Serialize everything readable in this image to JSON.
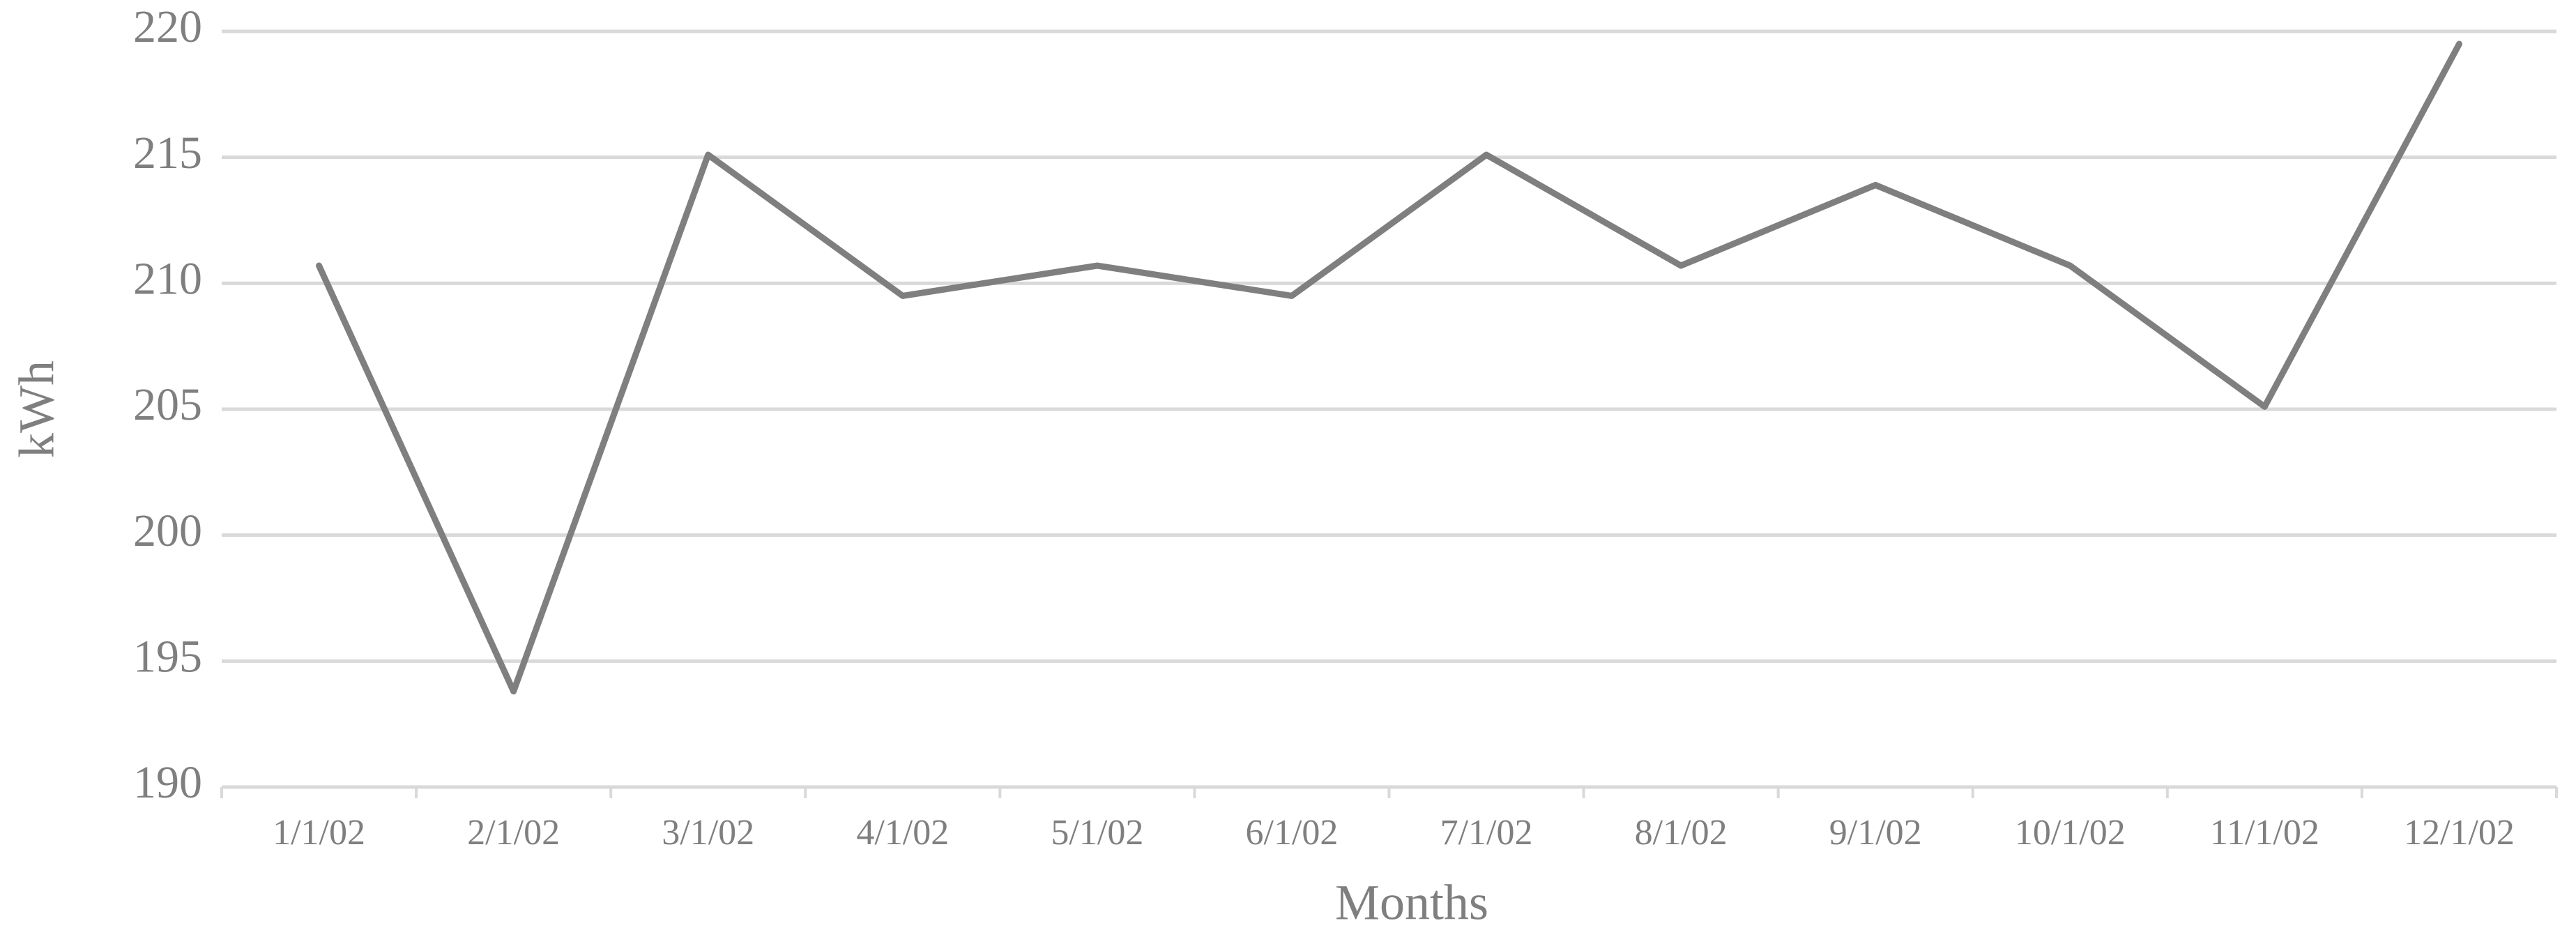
{
  "chart_data": {
    "type": "line",
    "x_label": "Months",
    "y_label": "kWh",
    "categories": [
      "1/1/02",
      "2/1/02",
      "3/1/02",
      "4/1/02",
      "5/1/02",
      "6/1/02",
      "7/1/02",
      "8/1/02",
      "9/1/02",
      "10/1/02",
      "11/1/02",
      "12/1/02"
    ],
    "values": [
      210.7,
      193.8,
      215.1,
      209.5,
      210.7,
      209.5,
      215.1,
      210.7,
      213.9,
      210.7,
      205.1,
      219.5
    ],
    "color": "#7f7f7f",
    "ylim": [
      190,
      220
    ],
    "yticks": [
      190,
      195,
      200,
      205,
      210,
      215,
      220
    ],
    "grid": true
  }
}
